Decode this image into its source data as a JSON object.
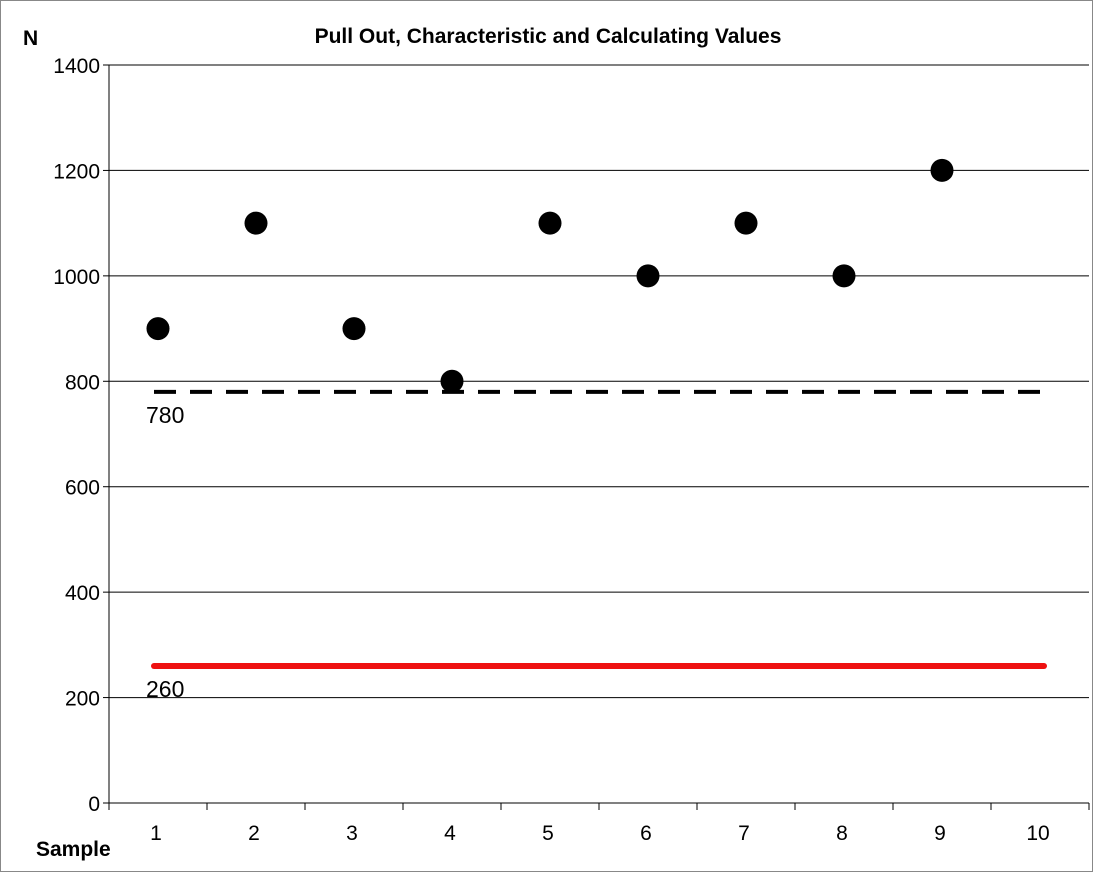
{
  "chart_data": {
    "type": "scatter",
    "title": "Pull Out, Characteristic and Calculating Values",
    "ylabel": "N",
    "xlabel": "Sample",
    "categories": [
      "1",
      "2",
      "3",
      "4",
      "5",
      "6",
      "7",
      "8",
      "9",
      "10"
    ],
    "ylim": [
      0,
      1400
    ],
    "yticks": [
      0,
      200,
      400,
      600,
      800,
      1000,
      1200,
      1400
    ],
    "grid": true,
    "series": [
      {
        "values": [
          900,
          1100,
          900,
          800,
          1100,
          1000,
          1100,
          1000,
          1200,
          null
        ],
        "color": "#000000",
        "marker": "circle"
      }
    ],
    "reference_lines": [
      {
        "value": 780,
        "label": "780",
        "color": "#000000",
        "style": "dashed"
      },
      {
        "value": 260,
        "label": "260",
        "color": "#ee1111",
        "style": "solid"
      }
    ]
  }
}
